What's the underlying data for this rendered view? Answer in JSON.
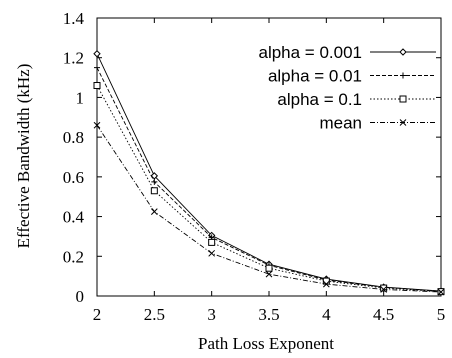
{
  "chart_data": {
    "type": "line",
    "xlabel": "Path Loss Exponent",
    "ylabel": "Effective Bandwidth (kHz)",
    "x": [
      2,
      2.5,
      3,
      3.5,
      4,
      4.5,
      5
    ],
    "xlim": [
      2,
      5
    ],
    "ylim": [
      0,
      1.4
    ],
    "xticks": [
      "2",
      "2.5",
      "3",
      "3.5",
      "4",
      "4.5",
      "5"
    ],
    "yticks": [
      "0",
      "0.2",
      "0.4",
      "0.6",
      "0.8",
      "1",
      "1.2",
      "1.4"
    ],
    "grid": false,
    "legend_position": "top-right",
    "series": [
      {
        "name": "alpha = 0.001",
        "values": [
          1.22,
          0.605,
          0.305,
          0.16,
          0.085,
          0.045,
          0.025
        ],
        "marker": "diamond",
        "dash": "solid"
      },
      {
        "name": "alpha = 0.01",
        "values": [
          1.15,
          0.575,
          0.295,
          0.155,
          0.08,
          0.044,
          0.024
        ],
        "marker": "plus",
        "dash": "dashed"
      },
      {
        "name": "alpha = 0.1",
        "values": [
          1.06,
          0.53,
          0.27,
          0.14,
          0.075,
          0.04,
          0.022
        ],
        "marker": "square",
        "dash": "dotted"
      },
      {
        "name": "mean",
        "values": [
          0.86,
          0.425,
          0.215,
          0.11,
          0.06,
          0.033,
          0.02
        ],
        "marker": "x",
        "dash": "dashdot"
      }
    ]
  }
}
